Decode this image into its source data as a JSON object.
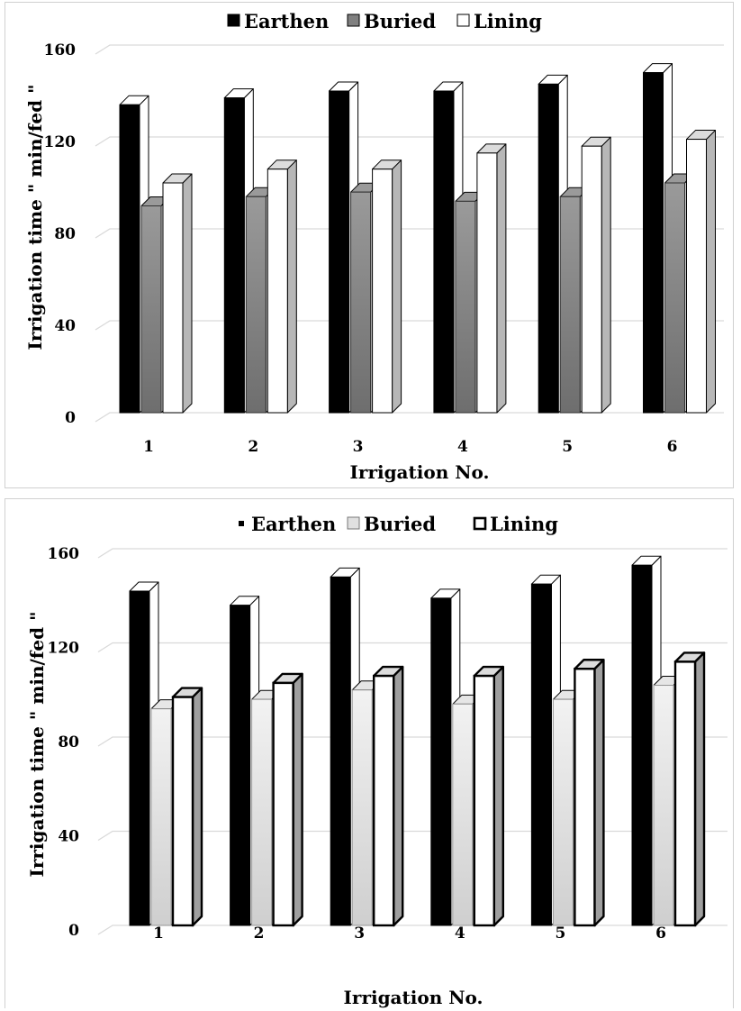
{
  "chart_data": [
    {
      "type": "bar",
      "style": "3d-clustered-column",
      "categories": [
        "1",
        "2",
        "3",
        "4",
        "5",
        "6"
      ],
      "series": [
        {
          "name": "Earthen",
          "values": [
            134,
            137,
            140,
            140,
            143,
            148
          ],
          "color": "#000000"
        },
        {
          "name": "Buried",
          "values": [
            90,
            94,
            96,
            92,
            94,
            100
          ],
          "color": "#808080"
        },
        {
          "name": "Lining",
          "values": [
            100,
            106,
            106,
            113,
            116,
            119
          ],
          "color": "#ffffff"
        }
      ],
      "xlabel": "Irrigation No.",
      "ylabel": "Irrigation time \" min/fed \"",
      "ylim": [
        0,
        160
      ],
      "yticks": [
        "0",
        "40",
        "80",
        "120",
        "160"
      ],
      "grid": true,
      "legend": "top"
    },
    {
      "type": "bar",
      "style": "3d-clustered-column",
      "categories": [
        "1",
        "2",
        "3",
        "4",
        "5",
        "6"
      ],
      "series": [
        {
          "name": "Earthen",
          "values": [
            142,
            136,
            148,
            139,
            145,
            153
          ],
          "color": "#000000"
        },
        {
          "name": "Buried",
          "values": [
            92,
            96,
            100,
            94,
            96,
            102
          ],
          "color": "#d8d8d8"
        },
        {
          "name": "Lining",
          "values": [
            97,
            103,
            106,
            106,
            109,
            112
          ],
          "color": "#ffffff"
        }
      ],
      "xlabel": "Irrigation No.",
      "ylabel": "Irrigation time \" min/fed \"",
      "ylim": [
        0,
        160
      ],
      "yticks": [
        "0",
        "40",
        "80",
        "120",
        "160"
      ],
      "grid": true,
      "legend": "top"
    }
  ]
}
